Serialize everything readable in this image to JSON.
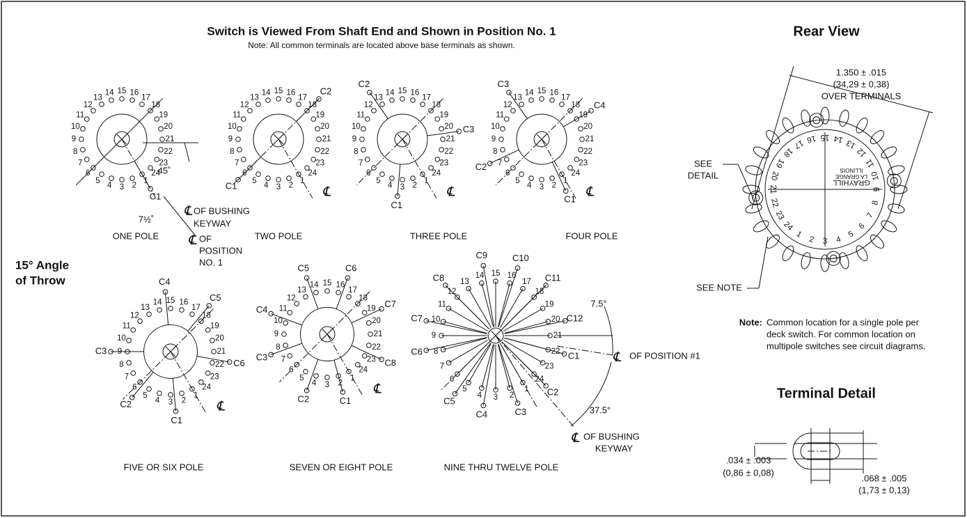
{
  "header": {
    "title": "Switch is Viewed From Shaft End and Shown in Position No. 1",
    "note": "Note: All common terminals are located above base terminals as shown."
  },
  "side_label": [
    "15° Angle",
    "of Throw"
  ],
  "terminal_numbers": [
    "1",
    "2",
    "3",
    "4",
    "5",
    "6",
    "7",
    "8",
    "9",
    "10",
    "11",
    "12",
    "13",
    "14",
    "15",
    "16",
    "17",
    "18",
    "19",
    "20",
    "21",
    "22",
    "23",
    "24"
  ],
  "centerline_symbol": "℄",
  "diagrams": [
    {
      "label": "ONE POLE",
      "commons": [
        "C1"
      ]
    },
    {
      "label": "TWO POLE",
      "commons": [
        "C1",
        "C2"
      ]
    },
    {
      "label": "THREE POLE",
      "commons": [
        "C1",
        "C2",
        "C3"
      ]
    },
    {
      "label": "FOUR POLE",
      "commons": [
        "C1",
        "C2",
        "C3",
        "C4"
      ]
    },
    {
      "label": "FIVE OR SIX POLE",
      "commons": [
        "C1",
        "C2",
        "C3",
        "C4",
        "C5",
        "C6"
      ]
    },
    {
      "label": "SEVEN OR EIGHT POLE",
      "commons": [
        "C1",
        "C2",
        "C3",
        "C4",
        "C5",
        "C6",
        "C7",
        "C8"
      ]
    },
    {
      "label": "NINE THRU TWELVE POLE",
      "commons": [
        "C1",
        "C2",
        "C3",
        "C4",
        "C5",
        "C6",
        "C7",
        "C8",
        "C9",
        "C10",
        "C11",
        "C12"
      ]
    }
  ],
  "one_pole_notes": {
    "angle": "45˚",
    "throw": "7½˚",
    "bushing": [
      "OF BUSHING",
      "KEYWAY"
    ],
    "position": [
      "OF",
      "POSITION",
      "NO. 1"
    ]
  },
  "nine_pole_notes": {
    "small_angle": "7.5°",
    "large_angle": "37.5°",
    "position": "OF POSITION #1",
    "bushing": [
      "OF BUSHING",
      "KEYWAY"
    ]
  },
  "rear_view": {
    "title": "Rear View",
    "dimension": [
      "1.350 ± .015",
      "(34,29 ± 0,38)",
      "OVER TERMINALS"
    ],
    "see_detail": [
      "SEE",
      "DETAIL"
    ],
    "see_note": "SEE NOTE",
    "brand": [
      "GRAYHILL",
      "LA GRANGE",
      "ILLINOIS"
    ]
  },
  "note": {
    "lead": "Note:",
    "lines": [
      "Common location for a single pole per",
      "deck switch. For common location on",
      "multipole switches see circuit diagrams."
    ]
  },
  "terminal_detail": {
    "title": "Terminal Detail",
    "height": [
      ".034 ± .003",
      "(0,86 ± 0,08)"
    ],
    "width": [
      ".068 ± .005",
      "(1,73 ± 0,13)"
    ]
  }
}
